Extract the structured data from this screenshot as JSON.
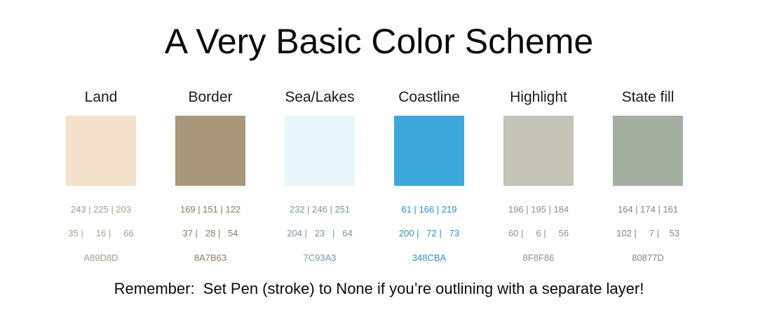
{
  "title": "A Very Basic Color Scheme",
  "swatches": [
    {
      "name": "Land",
      "color": "#F3E1CB",
      "rgb": "243 | 225 | 203",
      "other": "35 |     16 |     66",
      "hex": "A89D8D",
      "text_color": "#A89D8D"
    },
    {
      "name": "Border",
      "color": "#A9977A",
      "rgb": "169 | 151 | 122",
      "other": "37 |   28 |   54",
      "hex": "8A7B63",
      "text_color": "#8A7B63"
    },
    {
      "name": "Sea/Lakes",
      "color": "#E8F6FB",
      "rgb": "232 | 246 | 251",
      "other": "204 |   23   |   64",
      "hex": "7C93A3",
      "text_color": "#7C93A3"
    },
    {
      "name": "Coastline",
      "color": "#3DA6DB",
      "rgb": "61 | 166 | 219",
      "other": "200 |   72 |   73",
      "hex": "348CBA",
      "text_color": "#348CBA"
    },
    {
      "name": "Highlight",
      "color": "#C4C3B8",
      "rgb": "196 | 195 | 184",
      "other": "60 |     6 |     56",
      "hex": "8F8F86",
      "text_color": "#8F8F86"
    },
    {
      "name": "State fill",
      "color": "#A4AEA1",
      "rgb": "164 | 174 | 161",
      "other": "102 |     7 |    53",
      "hex": "80877D",
      "text_color": "#80877D"
    }
  ],
  "footer": "Remember:  Set Pen (stroke) to None if you’re outlining with a separate layer!"
}
